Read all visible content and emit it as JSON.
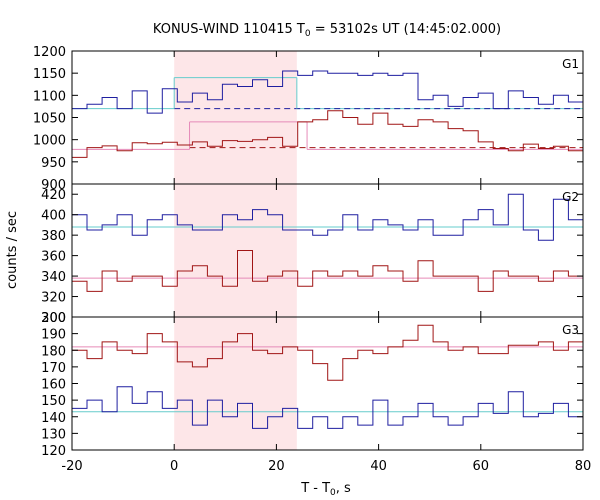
{
  "chart_data": {
    "type": "line",
    "title": "KONUS-WIND 110415 T",
    "title_sub": "0",
    "title_rest": " = 53102s UT (14:45:02.000)",
    "xlabel": "T - T",
    "xlabel_sub": "0",
    "xlabel_rest": ", s",
    "ylabel": "counts / sec",
    "xlim": [
      -20,
      80
    ],
    "x_ticks": [
      "-20",
      "0",
      "20",
      "40",
      "60",
      "80"
    ],
    "x_tick_values": [
      -20,
      0,
      20,
      40,
      60,
      80
    ],
    "highlight": {
      "x0": 0,
      "x1": 24,
      "color": "#fde6e8"
    },
    "bin_width": 2.944,
    "bin_start": -20,
    "panels": [
      {
        "name": "G1",
        "ylim": [
          900,
          1200
        ],
        "y_ticks": [
          "900",
          "950",
          "1000",
          "1050",
          "1100",
          "1150",
          "1200"
        ],
        "y_tick_values": [
          900,
          950,
          1000,
          1050,
          1100,
          1150,
          1200
        ],
        "series": [
          {
            "color": "#1f1fa0",
            "values": [
              1070,
              1080,
              1095,
              1070,
              1110,
              1060,
              1115,
              1085,
              1105,
              1090,
              1125,
              1120,
              1135,
              1120,
              1155,
              1145,
              1155,
              1150,
              1150,
              1145,
              1150,
              1145,
              1150,
              1090,
              1100,
              1075,
              1095,
              1105,
              1070,
              1110,
              1095,
              1080,
              1100,
              1085,
              1100,
              1090,
              1070,
              1095,
              1080,
              1095,
              1085,
              1075,
              1095,
              1090,
              1070,
              1100,
              1080,
              1110,
              1080,
              1080,
              1075,
              1100,
              1085,
              1080,
              1080,
              1105
            ]
          },
          {
            "color": "#a01515",
            "values": [
              960,
              982,
              986,
              975,
              993,
              991,
              994,
              988,
              995,
              985,
              998,
              996,
              1000,
              1005,
              985,
              1040,
              1045,
              1065,
              1050,
              1035,
              1060,
              1035,
              1030,
              1045,
              1040,
              1025,
              1020,
              995,
              980,
              975,
              990,
              980,
              985,
              975,
              980,
              985,
              980,
              975,
              980,
              978,
              982,
              978,
              985,
              980,
              975,
              985,
              980,
              978,
              982,
              978,
              980,
              975,
              980,
              978,
              982,
              985
            ]
          }
        ],
        "fits": [
          {
            "color": "#66cccc",
            "dashed": false,
            "y": 1070,
            "x0": -20,
            "x1": 0
          },
          {
            "color": "#66cccc",
            "dashed": false,
            "y": 1140,
            "x0": 0,
            "x1": 24
          },
          {
            "color": "#66cccc",
            "dashed": false,
            "y": 1070,
            "x0": 24,
            "x1": 80
          },
          {
            "color": "#1f1fa0",
            "dashed": true,
            "y": 1070,
            "x0": 0,
            "x1": 80
          },
          {
            "color": "#e68ab8",
            "dashed": false,
            "y": 978,
            "x0": -20,
            "x1": 3
          },
          {
            "color": "#e68ab8",
            "dashed": false,
            "y": 1040,
            "x0": 3,
            "x1": 26
          },
          {
            "color": "#e68ab8",
            "dashed": false,
            "y": 978,
            "x0": 26,
            "x1": 80
          },
          {
            "color": "#a01515",
            "dashed": true,
            "y": 982,
            "x0": 3,
            "x1": 80
          }
        ],
        "fit_verticals": [
          {
            "color": "#66cccc",
            "x": 0,
            "y0": 1070,
            "y1": 1140
          },
          {
            "color": "#66cccc",
            "x": 24,
            "y0": 1070,
            "y1": 1140
          },
          {
            "color": "#e68ab8",
            "x": 3,
            "y0": 978,
            "y1": 1040
          },
          {
            "color": "#e68ab8",
            "x": 26,
            "y0": 978,
            "y1": 1040
          }
        ]
      },
      {
        "name": "G2",
        "ylim": [
          300,
          430
        ],
        "y_ticks": [
          "300",
          "320",
          "340",
          "360",
          "380",
          "400",
          "420"
        ],
        "y_tick_values": [
          300,
          320,
          340,
          360,
          380,
          400,
          420
        ],
        "series": [
          {
            "color": "#1f1fa0",
            "values": [
              400,
              385,
              390,
              400,
              380,
              395,
              400,
              390,
              385,
              385,
              400,
              395,
              405,
              400,
              385,
              385,
              380,
              385,
              400,
              385,
              395,
              390,
              385,
              395,
              380,
              380,
              395,
              405,
              390,
              420,
              385,
              375,
              415,
              395,
              380,
              390,
              375,
              400,
              415,
              380,
              375,
              395,
              415,
              395,
              385,
              400,
              390,
              375,
              395,
              390,
              385,
              380,
              395,
              390,
              415,
              380
            ]
          },
          {
            "color": "#a01515",
            "values": [
              335,
              325,
              345,
              335,
              340,
              340,
              330,
              345,
              350,
              340,
              330,
              365,
              335,
              340,
              345,
              330,
              345,
              340,
              345,
              340,
              350,
              345,
              335,
              355,
              340,
              340,
              340,
              325,
              345,
              340,
              340,
              335,
              345,
              340,
              330,
              340,
              345,
              325,
              330,
              335,
              345,
              330,
              340,
              345,
              335,
              330,
              340,
              345,
              340,
              350,
              350,
              345,
              350,
              340,
              340,
              345
            ]
          }
        ],
        "fits": [
          {
            "color": "#66cccc",
            "dashed": false,
            "y": 388,
            "x0": -20,
            "x1": 80
          },
          {
            "color": "#e68ab8",
            "dashed": false,
            "y": 338,
            "x0": -20,
            "x1": 80
          }
        ],
        "fit_verticals": []
      },
      {
        "name": "G3",
        "ylim": [
          120,
          200
        ],
        "y_ticks": [
          "120",
          "130",
          "140",
          "150",
          "160",
          "170",
          "180",
          "190",
          "200"
        ],
        "y_tick_values": [
          120,
          130,
          140,
          150,
          160,
          170,
          180,
          190,
          200
        ],
        "series": [
          {
            "color": "#1f1fa0",
            "values": [
              145,
              150,
              143,
              158,
              148,
              155,
              145,
              150,
              135,
              150,
              140,
              148,
              133,
              140,
              145,
              133,
              140,
              133,
              140,
              135,
              150,
              135,
              140,
              148,
              140,
              135,
              140,
              148,
              142,
              155,
              140,
              142,
              148,
              140,
              150,
              148,
              138,
              145,
              150,
              140,
              148,
              145,
              155,
              150,
              140,
              148,
              145,
              140,
              135,
              148,
              143,
              145,
              148,
              140,
              145,
              150
            ]
          },
          {
            "color": "#a01515",
            "values": [
              180,
              175,
              185,
              180,
              178,
              190,
              185,
              173,
              170,
              175,
              185,
              190,
              180,
              178,
              182,
              180,
              172,
              162,
              175,
              180,
              178,
              182,
              186,
              195,
              185,
              180,
              182,
              178,
              178,
              183,
              183,
              185,
              180,
              185,
              180,
              185,
              175,
              180,
              185,
              180,
              185,
              170,
              180,
              185,
              178,
              172,
              175,
              172,
              178,
              182,
              188,
              178,
              182,
              178,
              180,
              188
            ]
          }
        ],
        "fits": [
          {
            "color": "#e68ab8",
            "dashed": false,
            "y": 182,
            "x0": -20,
            "x1": 80
          },
          {
            "color": "#66cccc",
            "dashed": false,
            "y": 143,
            "x0": -20,
            "x1": 80
          }
        ],
        "fit_verticals": []
      }
    ]
  }
}
